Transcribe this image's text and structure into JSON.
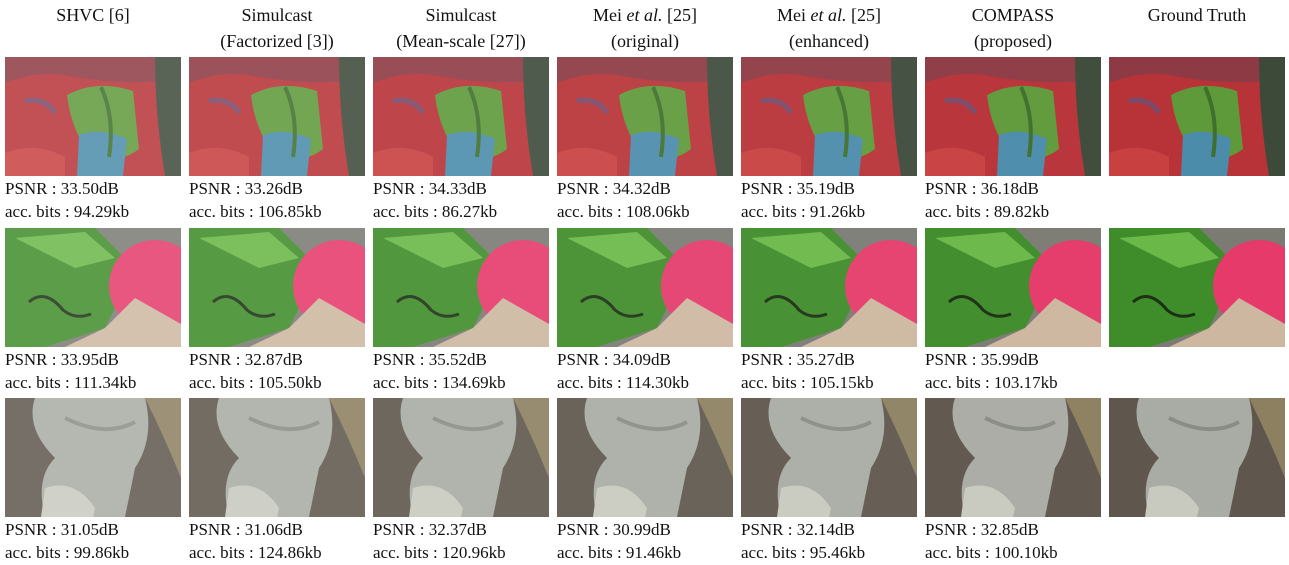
{
  "headers": [
    {
      "lines": [
        [
          "SHVC [6]"
        ]
      ]
    },
    {
      "lines": [
        [
          "Simulcast"
        ],
        [
          "(Factorized [3])"
        ]
      ]
    },
    {
      "lines": [
        [
          "Simulcast"
        ],
        [
          "(Mean-scale [27])"
        ]
      ]
    },
    {
      "lines": [
        [
          "Mei",
          "et al.",
          "[25]"
        ],
        [
          "(original)"
        ]
      ]
    },
    {
      "lines": [
        [
          "Mei",
          "et al.",
          "[25]"
        ],
        [
          "(enhanced)"
        ]
      ]
    },
    {
      "lines": [
        [
          "COMPASS"
        ],
        [
          "(proposed)"
        ]
      ]
    },
    {
      "lines": [
        [
          "Ground Truth"
        ]
      ]
    }
  ],
  "rows": [
    {
      "captions": [
        {
          "psnr": "PSNR : 33.50dB",
          "bits": "acc. bits : 94.29kb"
        },
        {
          "psnr": "PSNR : 33.26dB",
          "bits": "acc. bits : 106.85kb"
        },
        {
          "psnr": "PSNR : 34.33dB",
          "bits": "acc. bits : 86.27kb"
        },
        {
          "psnr": "PSNR : 34.32dB",
          "bits": "acc. bits : 108.06kb"
        },
        {
          "psnr": "PSNR : 35.19dB",
          "bits": "acc. bits : 91.26kb"
        },
        {
          "psnr": "PSNR : 36.18dB",
          "bits": "acc. bits : 89.82kb"
        }
      ]
    },
    {
      "captions": [
        {
          "psnr": "PSNR : 33.95dB",
          "bits": "acc. bits : 111.34kb"
        },
        {
          "psnr": "PSNR : 32.87dB",
          "bits": "acc. bits : 105.50kb"
        },
        {
          "psnr": "PSNR : 35.52dB",
          "bits": "acc. bits : 134.69kb"
        },
        {
          "psnr": "PSNR : 34.09dB",
          "bits": "acc. bits : 114.30kb"
        },
        {
          "psnr": "PSNR : 35.27dB",
          "bits": "acc. bits : 105.15kb"
        },
        {
          "psnr": "PSNR : 35.99dB",
          "bits": "acc. bits : 103.17kb"
        }
      ]
    },
    {
      "captions": [
        {
          "psnr": "PSNR : 31.05dB",
          "bits": "acc. bits : 99.86kb"
        },
        {
          "psnr": "PSNR : 31.06dB",
          "bits": "acc. bits : 124.86kb"
        },
        {
          "psnr": "PSNR : 32.37dB",
          "bits": "acc. bits : 120.96kb"
        },
        {
          "psnr": "PSNR : 30.99dB",
          "bits": "acc. bits : 91.46kb"
        },
        {
          "psnr": "PSNR : 32.14dB",
          "bits": "acc. bits : 95.46kb"
        },
        {
          "psnr": "PSNR : 32.85dB",
          "bits": "acc. bits : 100.10kb"
        }
      ]
    }
  ]
}
